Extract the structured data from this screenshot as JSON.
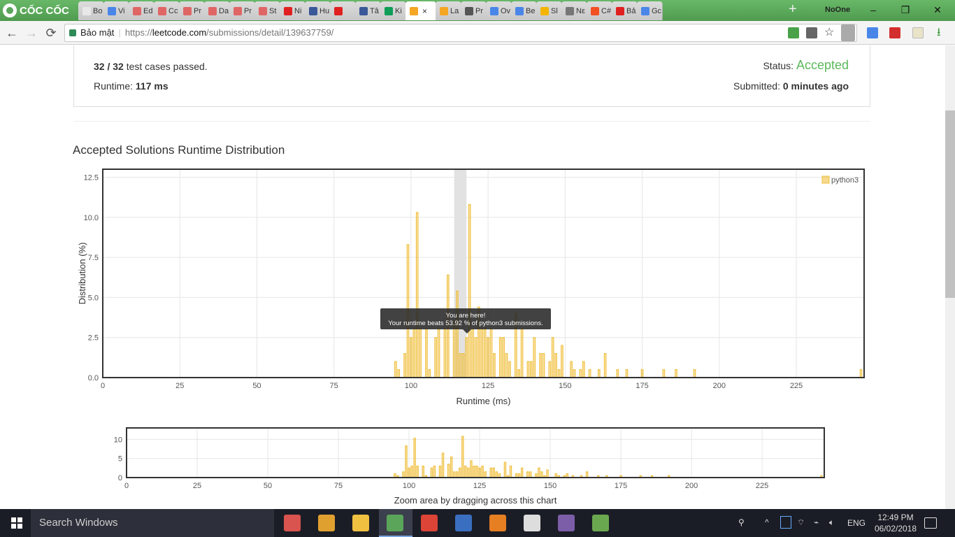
{
  "browser": {
    "brand": "CỐC CỐC",
    "tabs": [
      {
        "label": "Bo",
        "color": "#e8e8e8"
      },
      {
        "label": "Vi",
        "color": "#4a86e8"
      },
      {
        "label": "Ed",
        "color": "#e06666"
      },
      {
        "label": "Cc",
        "color": "#e06666"
      },
      {
        "label": "Pr",
        "color": "#e06666"
      },
      {
        "label": "Da",
        "color": "#e06666"
      },
      {
        "label": "Pr",
        "color": "#e06666"
      },
      {
        "label": "St",
        "color": "#e06666"
      },
      {
        "label": "Ni",
        "color": "#e02020"
      },
      {
        "label": "Hu",
        "color": "#3b5998"
      },
      {
        "label": "",
        "color": "#e02020"
      },
      {
        "label": "Tâ",
        "color": "#3b5998"
      },
      {
        "label": "Ki",
        "color": "#0f9d58"
      },
      {
        "label": "",
        "color": "#f5a623",
        "active": true,
        "close": "×"
      },
      {
        "label": "La",
        "color": "#f5a623"
      },
      {
        "label": "Pr",
        "color": "#555555"
      },
      {
        "label": "Ov",
        "color": "#4a86e8"
      },
      {
        "label": "Be",
        "color": "#4a86e8"
      },
      {
        "label": "Sl",
        "color": "#f4b400"
      },
      {
        "label": "Nε",
        "color": "#777777"
      },
      {
        "label": "C#",
        "color": "#f25022"
      },
      {
        "label": "Bả",
        "color": "#e02020"
      },
      {
        "label": "Gc",
        "color": "#4a86e8"
      }
    ],
    "new_tab": "+",
    "profile": "NoOne",
    "window_buttons": {
      "minimize": "–",
      "restore": "❐",
      "close": "✕"
    },
    "nav": {
      "back": "←",
      "forward": "→",
      "reload": "⟳"
    },
    "security_label": "Bảo mật",
    "url_scheme": "https://",
    "url_host": "leetcode.com",
    "url_path": "/submissions/detail/139637759/",
    "toolbar_icons": [
      "cart-icon",
      "translate-icon",
      "star-icon",
      "download-icon",
      "google-translate-icon",
      "extension-icon",
      "notes-icon",
      "download-arrow-icon"
    ]
  },
  "submission": {
    "passed": "32 / 32",
    "passed_suffix": " test cases passed.",
    "runtime_label": "Runtime: ",
    "runtime_value": "117 ms",
    "status_label": "Status: ",
    "status_value": "Accepted",
    "submitted_label": "Submitted: ",
    "submitted_value": "0 minutes ago",
    "status_color": "#5cb85c"
  },
  "section_title": "Accepted Solutions Runtime Distribution",
  "chart_data": [
    {
      "type": "bar",
      "title": "",
      "xlabel": "Runtime (ms)",
      "ylabel": "Distribution (%)",
      "xlim": [
        0,
        247
      ],
      "ylim": [
        0,
        13
      ],
      "xticks": [
        "0",
        "25",
        "50",
        "75",
        "100",
        "125",
        "150",
        "175",
        "200",
        "225"
      ],
      "yticks": [
        "0.0",
        "2.5",
        "5.0",
        "7.5",
        "10.0",
        "12.5"
      ],
      "legend": "top-right",
      "series": [
        {
          "name": "python3",
          "color": "#f0c040"
        }
      ],
      "highlight_x": 117,
      "tooltip_title": "You are here!",
      "tooltip_text": "Your runtime beats 53.92 % of python3 submissions.",
      "points": [
        [
          95,
          1
        ],
        [
          96,
          0.5
        ],
        [
          98,
          1.5
        ],
        [
          99,
          8.3
        ],
        [
          100,
          2.5
        ],
        [
          101,
          3
        ],
        [
          102,
          10.3
        ],
        [
          103,
          3
        ],
        [
          105,
          3
        ],
        [
          106,
          0.5
        ],
        [
          108,
          2.5
        ],
        [
          109,
          3
        ],
        [
          111,
          3
        ],
        [
          112,
          6.4
        ],
        [
          114,
          3.5
        ],
        [
          115,
          5.4
        ],
        [
          116,
          1.5
        ],
        [
          117,
          1.5
        ],
        [
          118,
          2.5
        ],
        [
          119,
          10.8
        ],
        [
          120,
          3
        ],
        [
          121,
          2.5
        ],
        [
          122,
          4.4
        ],
        [
          123,
          3
        ],
        [
          124,
          3
        ],
        [
          125,
          2.5
        ],
        [
          126,
          3
        ],
        [
          127,
          1.5
        ],
        [
          129,
          2.5
        ],
        [
          130,
          2.5
        ],
        [
          131,
          1.5
        ],
        [
          132,
          1
        ],
        [
          134,
          4
        ],
        [
          135,
          0.5
        ],
        [
          136,
          3
        ],
        [
          138,
          1
        ],
        [
          139,
          1
        ],
        [
          140,
          2.5
        ],
        [
          142,
          1.5
        ],
        [
          143,
          1.5
        ],
        [
          145,
          1
        ],
        [
          146,
          2.5
        ],
        [
          147,
          1.5
        ],
        [
          148,
          0.5
        ],
        [
          149,
          2
        ],
        [
          152,
          1
        ],
        [
          153,
          0.5
        ],
        [
          155,
          0.5
        ],
        [
          156,
          1
        ],
        [
          158,
          0.5
        ],
        [
          161,
          0.5
        ],
        [
          163,
          1.5
        ],
        [
          167,
          0.5
        ],
        [
          170,
          0.5
        ],
        [
          175,
          0.5
        ],
        [
          182,
          0.5
        ],
        [
          186,
          0.5
        ],
        [
          192,
          0.5
        ],
        [
          246,
          0.5
        ]
      ]
    },
    {
      "type": "bar",
      "title": "",
      "xlabel": "Zoom area by dragging across this chart",
      "xlim": [
        0,
        247
      ],
      "ylim": [
        0,
        13
      ],
      "xticks": [
        "0",
        "25",
        "50",
        "75",
        "100",
        "125",
        "150",
        "175",
        "200",
        "225"
      ],
      "yticks": [
        "0",
        "5",
        "10"
      ]
    }
  ],
  "taskbar": {
    "search": "Search Windows",
    "lang": "ENG",
    "time": "12:49 PM",
    "date": "06/02/2018",
    "apps": [
      "paint-icon",
      "palette-icon",
      "file-explorer-icon",
      "coccoc-browser-icon",
      "chrome-icon",
      "devcpp-icon",
      "office-icon",
      "calculator-icon",
      "visual-studio-icon",
      "spreadsheet-icon"
    ]
  }
}
